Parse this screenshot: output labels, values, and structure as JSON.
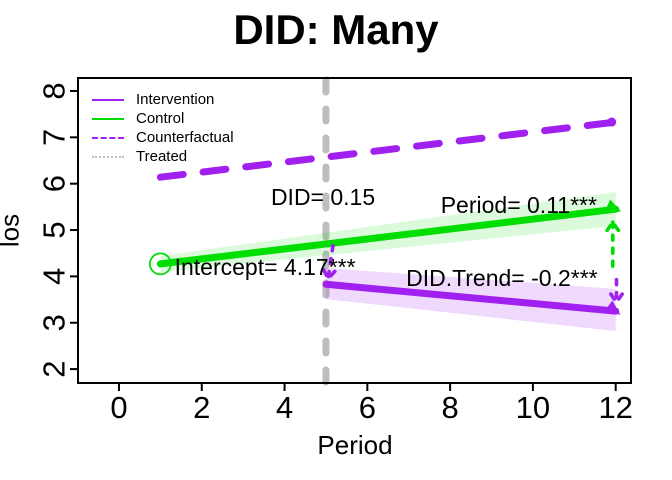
{
  "chart_data": {
    "type": "line",
    "title": "DID: Many",
    "xlabel": "Period",
    "ylabel": "los",
    "xlim": [
      -0.99,
      12.37
    ],
    "ylim": [
      1.7,
      8.28
    ],
    "x_ticks": [
      0,
      2,
      4,
      6,
      8,
      10,
      12
    ],
    "y_ticks": [
      2,
      3,
      4,
      5,
      6,
      7,
      8
    ],
    "grid": false,
    "legend": {
      "position": "top-left",
      "items": [
        {
          "label": "Intervention",
          "color": "#A020F0",
          "line": "solid"
        },
        {
          "label": "Control",
          "color": "#00DD00",
          "line": "solid"
        },
        {
          "label": "Counterfactual",
          "color": "#A020F0",
          "line": "dashed"
        },
        {
          "label": "Treated",
          "color": "#BEBEBE",
          "line": "dotted"
        }
      ]
    },
    "vline": {
      "x": 5,
      "color": "#BEBEBE",
      "style": "dashed"
    },
    "series": [
      {
        "name": "Counterfactual",
        "color": "#A020F0",
        "style": "dashed",
        "width": 7,
        "x": [
          1,
          12
        ],
        "y": [
          6.14,
          7.33
        ],
        "end_dot": true
      },
      {
        "name": "Control",
        "color": "#00DD00",
        "style": "solid",
        "width": 7,
        "x": [
          1,
          12
        ],
        "y": [
          4.27,
          5.45
        ],
        "band": {
          "color": "rgba(0,221,0,0.14)",
          "lo": [
            4.09,
            5.09
          ],
          "hi": [
            4.44,
            5.82
          ]
        },
        "start_marker": "open-circle",
        "end_arrow": true
      },
      {
        "name": "Intervention",
        "color": "#A020F0",
        "style": "solid",
        "width": 7,
        "x": [
          5,
          12
        ],
        "y": [
          3.83,
          3.25
        ],
        "band": {
          "color": "rgba(160,32,240,0.17)",
          "lo": [
            3.51,
            2.82
          ],
          "hi": [
            4.18,
            3.73
          ]
        },
        "end_arrow": true
      }
    ],
    "arrows": [
      {
        "name": "did-arrow",
        "color": "#A020F0",
        "x1": 5.17,
        "y1": 4.66,
        "x2": 5.05,
        "y2": 3.95,
        "head": "end"
      },
      {
        "name": "control-drop-arrow",
        "color": "#00DD00",
        "x1": 11.93,
        "y1": 5.17,
        "x2": 11.93,
        "y2": 4.13,
        "head": "start"
      },
      {
        "name": "intervention-drop-arrow",
        "color": "#A020F0",
        "x1": 12.02,
        "y1": 3.93,
        "x2": 12.02,
        "y2": 3.44,
        "head": "end"
      }
    ],
    "annotations": [
      {
        "name": "did-estimate",
        "text": "DID= 0.15",
        "x": 4.93,
        "y": 5.71
      },
      {
        "name": "period-estimate",
        "text": "Period= 0.11***",
        "x": 9.66,
        "y": 5.54
      },
      {
        "name": "intercept-estimate",
        "text": "Intercept= 4.17***",
        "x": 3.53,
        "y": 4.2
      },
      {
        "name": "did-trend-estimate",
        "text": "DID.Trend= -0.2***",
        "x": 9.25,
        "y": 3.96
      }
    ],
    "colors": {
      "purple": "#A020F0",
      "green": "#00DD00",
      "gray": "#BEBEBE",
      "band_green": "rgba(0,221,0,0.14)",
      "band_purple": "rgba(160,32,240,0.17)",
      "axis": "#000000"
    }
  }
}
